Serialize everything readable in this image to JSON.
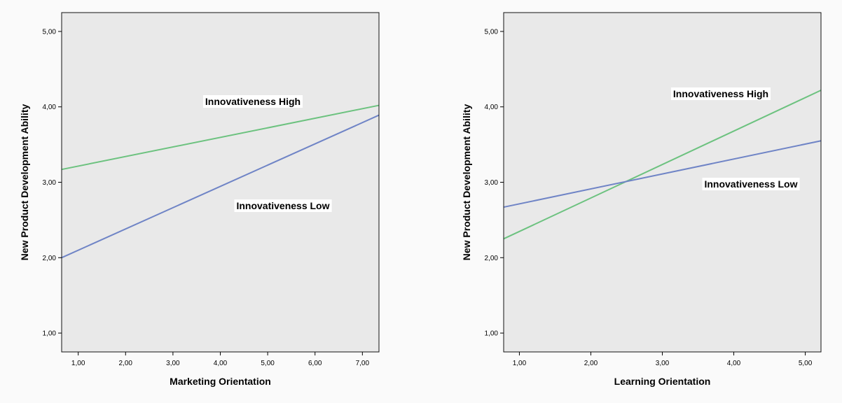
{
  "chart_data": [
    {
      "type": "line",
      "xlabel": "Marketing Orientation",
      "ylabel": "New Product Development Ability",
      "xlim": [
        0.65,
        7.35
      ],
      "ylim": [
        0.75,
        5.25
      ],
      "xticks": [
        "1,00",
        "2,00",
        "3,00",
        "4,00",
        "5,00",
        "6,00",
        "7,00"
      ],
      "yticks": [
        "1,00",
        "2,00",
        "3,00",
        "4,00",
        "5,00"
      ],
      "grid": false,
      "series": [
        {
          "name": "Innovativeness High",
          "color": "#6cc27f",
          "x": [
            0.65,
            7.35
          ],
          "y": [
            3.17,
            4.02
          ]
        },
        {
          "name": "Innovativeness Low",
          "color": "#6f84c6",
          "x": [
            0.65,
            7.35
          ],
          "y": [
            2.0,
            3.89
          ]
        }
      ]
    },
    {
      "type": "line",
      "xlabel": "Learning Orientation",
      "ylabel": "New Product Development Ability",
      "xlim": [
        0.78,
        5.22
      ],
      "ylim": [
        0.75,
        5.25
      ],
      "xticks": [
        "1,00",
        "2,00",
        "3,00",
        "4,00",
        "5,00"
      ],
      "yticks": [
        "1,00",
        "2,00",
        "3,00",
        "4,00",
        "5,00"
      ],
      "grid": false,
      "series": [
        {
          "name": "Innovativeness High",
          "color": "#6cc27f",
          "x": [
            0.78,
            5.22
          ],
          "y": [
            2.25,
            4.22
          ]
        },
        {
          "name": "Innovativeness Low",
          "color": "#6f84c6",
          "x": [
            0.78,
            5.22
          ],
          "y": [
            2.67,
            3.55
          ]
        }
      ]
    }
  ],
  "style": {
    "plot_background": "#e9e9e9",
    "page_background": "#fafafa",
    "frame_color": "#111111"
  }
}
